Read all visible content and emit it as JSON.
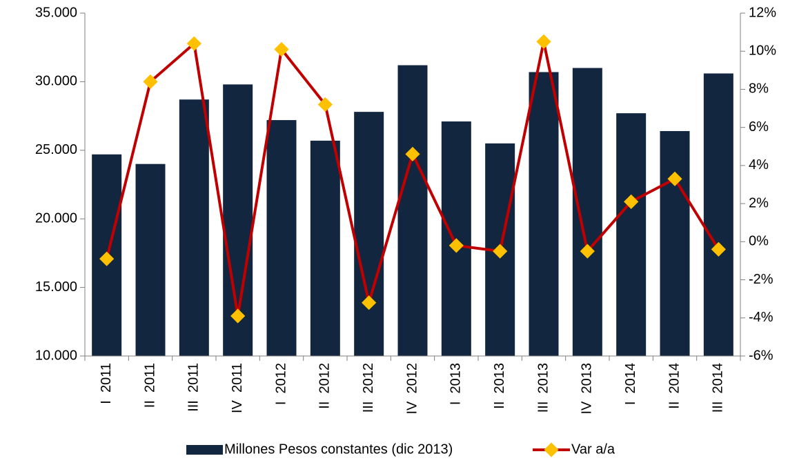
{
  "chart_data": {
    "type": "bar_line",
    "categories": [
      "I  2011",
      "II  2011",
      "III  2011",
      "IV  2011",
      "I  2012",
      "II  2012",
      "III  2012",
      "IV  2012",
      "I  2013",
      "II  2013",
      "III  2013",
      "IV  2013",
      "I  2014",
      "II  2014",
      "III  2014"
    ],
    "series": [
      {
        "name": "Millones Pesos constantes (dic 2013)",
        "type": "bar",
        "color": "#13263f",
        "values": [
          24700,
          24000,
          28700,
          29800,
          27200,
          25700,
          27800,
          31200,
          27100,
          25500,
          30700,
          31000,
          27700,
          26400,
          30600
        ]
      },
      {
        "name": "Var a/a",
        "type": "line",
        "axis": "y2",
        "color": "#c00000",
        "marker_color": "#ffc000",
        "values": [
          -0.9,
          8.4,
          10.4,
          -3.9,
          10.1,
          7.2,
          -3.2,
          4.6,
          -0.2,
          -0.5,
          10.5,
          -0.5,
          2.1,
          3.3,
          -0.4
        ]
      }
    ],
    "ylim": [
      10000,
      35000
    ],
    "yticks": [
      {
        "value": 10000,
        "label": "10.000"
      },
      {
        "value": 15000,
        "label": "15.000"
      },
      {
        "value": 20000,
        "label": "20.000"
      },
      {
        "value": 25000,
        "label": "25.000"
      },
      {
        "value": 30000,
        "label": "30.000"
      },
      {
        "value": 35000,
        "label": "35.000"
      }
    ],
    "y2lim": [
      -6,
      12
    ],
    "y2ticks": [
      {
        "value": -6,
        "label": "-6%"
      },
      {
        "value": -4,
        "label": "-4%"
      },
      {
        "value": -2,
        "label": "-2%"
      },
      {
        "value": 0,
        "label": "0%"
      },
      {
        "value": 2,
        "label": "2%"
      },
      {
        "value": 4,
        "label": "4%"
      },
      {
        "value": 6,
        "label": "6%"
      },
      {
        "value": 8,
        "label": "8%"
      },
      {
        "value": 10,
        "label": "10%"
      },
      {
        "value": 12,
        "label": "12%"
      }
    ],
    "legend": "bottom"
  }
}
